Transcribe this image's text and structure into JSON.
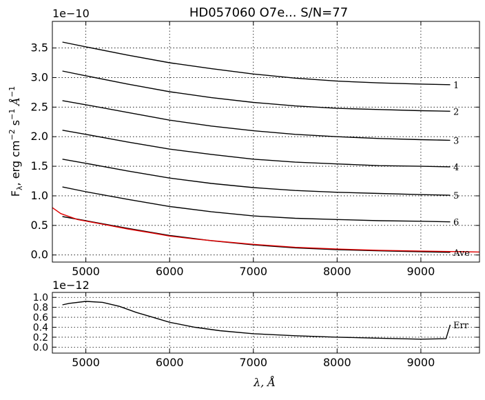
{
  "chart_data": [
    {
      "type": "line",
      "title": "HD057060  O7e...  S/N=77",
      "ylabel_main": "F",
      "ylabel_sub": "λ",
      "ylabel_rest": ", erg cm",
      "ylabel_exp1": "−2",
      "ylabel_mid": " s",
      "ylabel_exp2": "−1",
      "ylabel_unit": " Å",
      "ylabel_exp3": "−1",
      "y_exponent": "1e−10",
      "xlim": [
        4600,
        9700
      ],
      "ylim": [
        -0.12,
        3.95
      ],
      "grid": true,
      "x_ticks": [
        5000,
        6000,
        7000,
        8000,
        9000
      ],
      "x_tick_labels": [
        "5000",
        "6000",
        "7000",
        "8000",
        "9000"
      ],
      "y_ticks": [
        0.0,
        0.5,
        1.0,
        1.5,
        2.0,
        2.5,
        3.0,
        3.5
      ],
      "y_tick_labels": [
        "0.0",
        "0.5",
        "1.0",
        "1.5",
        "2.0",
        "2.5",
        "3.0",
        "3.5"
      ],
      "series": [
        {
          "name": "1",
          "color": "#000000",
          "offset": 3.0,
          "x": [
            4720,
            5000,
            5500,
            6000,
            6500,
            7000,
            7500,
            8000,
            8500,
            9000,
            9350
          ],
          "y": [
            3.6,
            3.52,
            3.38,
            3.25,
            3.15,
            3.06,
            2.99,
            2.94,
            2.91,
            2.89,
            2.88
          ]
        },
        {
          "name": "2",
          "color": "#000000",
          "offset": 2.5,
          "x": [
            4720,
            5000,
            5500,
            6000,
            6500,
            7000,
            7500,
            8000,
            8500,
            9000,
            9350
          ],
          "y": [
            3.11,
            3.03,
            2.89,
            2.76,
            2.66,
            2.58,
            2.52,
            2.48,
            2.46,
            2.44,
            2.43
          ]
        },
        {
          "name": "3",
          "color": "#000000",
          "offset": 2.0,
          "x": [
            4720,
            5000,
            5500,
            6000,
            6500,
            7000,
            7500,
            8000,
            8500,
            9000,
            9350
          ],
          "y": [
            2.61,
            2.54,
            2.41,
            2.28,
            2.18,
            2.1,
            2.04,
            2.0,
            1.97,
            1.95,
            1.94
          ]
        },
        {
          "name": "4",
          "color": "#000000",
          "offset": 1.5,
          "x": [
            4720,
            5000,
            5500,
            6000,
            6500,
            7000,
            7500,
            8000,
            8500,
            9000,
            9350
          ],
          "y": [
            2.11,
            2.04,
            1.91,
            1.79,
            1.7,
            1.62,
            1.57,
            1.54,
            1.51,
            1.5,
            1.49
          ]
        },
        {
          "name": "5",
          "color": "#000000",
          "offset": 1.0,
          "x": [
            4720,
            5000,
            5500,
            6000,
            6500,
            7000,
            7500,
            8000,
            8500,
            9000,
            9350
          ],
          "y": [
            1.62,
            1.55,
            1.42,
            1.3,
            1.21,
            1.14,
            1.09,
            1.06,
            1.04,
            1.02,
            1.01
          ]
        },
        {
          "name": "6",
          "color": "#000000",
          "offset": 0.5,
          "x": [
            4720,
            5000,
            5500,
            6000,
            6500,
            7000,
            7500,
            8000,
            8500,
            9000,
            9350
          ],
          "y": [
            1.15,
            1.07,
            0.94,
            0.82,
            0.73,
            0.66,
            0.62,
            0.6,
            0.58,
            0.57,
            0.56
          ]
        },
        {
          "name": "Ave",
          "color": "#000000",
          "offset": 0.0,
          "x": [
            4720,
            5000,
            5500,
            6000,
            6500,
            7000,
            7500,
            8000,
            8500,
            9000,
            9350
          ],
          "y": [
            0.65,
            0.58,
            0.45,
            0.33,
            0.24,
            0.17,
            0.12,
            0.09,
            0.07,
            0.055,
            0.045
          ]
        },
        {
          "name": "",
          "color": "#e00000",
          "x": [
            4600,
            4700,
            4900,
            5200,
            5500,
            5800,
            6000,
            6300,
            6600,
            7000,
            7500,
            8000,
            8500,
            9000,
            9500,
            9700
          ],
          "y": [
            0.8,
            0.7,
            0.6,
            0.52,
            0.44,
            0.37,
            0.32,
            0.27,
            0.23,
            0.18,
            0.13,
            0.1,
            0.08,
            0.065,
            0.055,
            0.05
          ]
        }
      ],
      "labels": [
        "1",
        "2",
        "3",
        "4",
        "5",
        "6",
        "Ave"
      ]
    },
    {
      "type": "line",
      "y_exponent": "1e−12",
      "xlabel_main": "λ",
      "xlabel_rest": ", Å",
      "xlim": [
        4600,
        9700
      ],
      "ylim": [
        -0.12,
        1.1
      ],
      "grid": true,
      "x_ticks": [
        5000,
        6000,
        7000,
        8000,
        9000
      ],
      "x_tick_labels": [
        "5000",
        "6000",
        "7000",
        "8000",
        "9000"
      ],
      "y_ticks": [
        0.0,
        0.2,
        0.4,
        0.6,
        0.8,
        1.0
      ],
      "y_tick_labels": [
        "0.0",
        "0.2",
        "0.4",
        "0.6",
        "0.8",
        "1.0"
      ],
      "series": [
        {
          "name": "Err",
          "color": "#000000",
          "x": [
            4720,
            4800,
            5000,
            5200,
            5400,
            5600,
            5800,
            6000,
            6300,
            6600,
            7000,
            7500,
            8000,
            8500,
            9000,
            9300,
            9350
          ],
          "y": [
            0.85,
            0.88,
            0.92,
            0.9,
            0.82,
            0.7,
            0.6,
            0.5,
            0.4,
            0.33,
            0.27,
            0.23,
            0.2,
            0.18,
            0.16,
            0.17,
            0.45
          ]
        }
      ],
      "label": "Err"
    }
  ]
}
